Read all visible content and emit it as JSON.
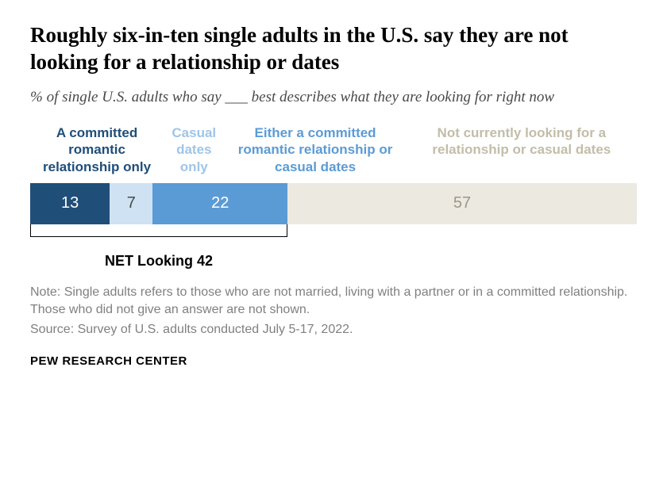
{
  "title": "Roughly six-in-ten single adults in the U.S. say they are not looking for a relationship or dates",
  "subtitle": "% of single U.S. adults who say ___ best describes what they are looking for right now",
  "title_fontsize": 27,
  "subtitle_fontsize": 19,
  "legend_fontsize": 17,
  "value_fontsize": 20,
  "net_fontsize": 18,
  "note_fontsize": 16,
  "attribution_fontsize": 15,
  "categories": [
    {
      "label": "A committed romantic relationship only",
      "value": 13,
      "color": "#1f4e79",
      "text_color": "#ffffff",
      "legend_color": "#1f4e79",
      "legend_width_pct": 22
    },
    {
      "label": "Casual dates only",
      "value": 7,
      "color": "#cfe2f3",
      "text_color": "#494949",
      "legend_color": "#9fc5e8",
      "legend_width_pct": 10
    },
    {
      "label": "Either a committed romantic relationship or casual dates",
      "value": 22,
      "color": "#5b9bd5",
      "text_color": "#ffffff",
      "legend_color": "#5b9bd5",
      "legend_width_pct": 30
    },
    {
      "label": "Not currently looking for a relationship or casual dates",
      "value": 57,
      "color": "#ece9e1",
      "text_color": "#9d9787",
      "legend_color": "#c2bda9",
      "legend_width_pct": 38
    }
  ],
  "total_bar_basis": 99,
  "net": {
    "label": "NET Looking 42",
    "span_pct": 42
  },
  "note": "Note: Single adults refers to those who are not married, living with a partner or in a committed relationship. Those who did not give an answer are not shown.",
  "source": "Source: Survey of U.S. adults conducted July 5-17, 2022.",
  "attribution": "PEW RESEARCH CENTER"
}
